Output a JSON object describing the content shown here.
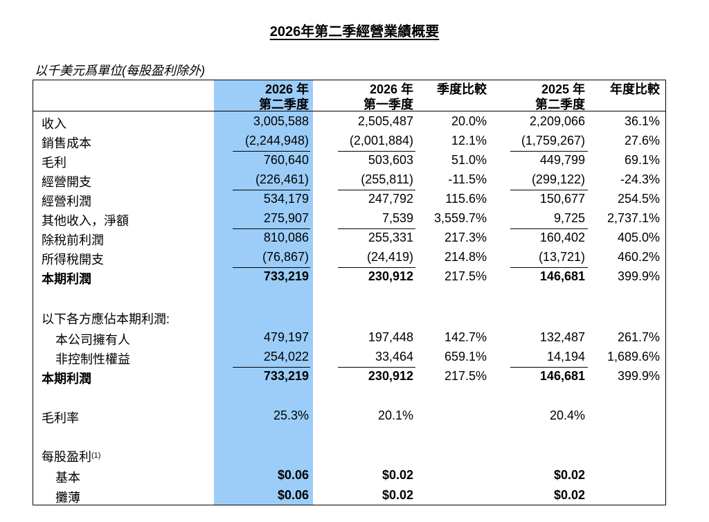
{
  "title": "2026年第二季經營業績概要",
  "unit_note": "以千美元爲單位(每股盈利除外)",
  "headers": {
    "col1_line1": "2026 年",
    "col1_line2": "第二季度",
    "col2_line1": "2026 年",
    "col2_line2": "第一季度",
    "col3": "季度比較",
    "col4_line1": "2025 年",
    "col4_line2": "第二季度",
    "col5": "年度比較"
  },
  "rows": [
    {
      "label": "收入",
      "v1": "3,005,588",
      "v2": "2,505,487",
      "v3": "20.0%",
      "v4": "2,209,066",
      "v5": "36.1%"
    },
    {
      "label": "銷售成本",
      "v1": "(2,244,948)",
      "v2": "(2,001,884)",
      "v3": "12.1%",
      "v4": "(1,759,267)",
      "v5": "27.6%"
    },
    {
      "label": "毛利",
      "v1": "760,640",
      "v2": "503,603",
      "v3": "51.0%",
      "v4": "449,799",
      "v5": "69.1%"
    },
    {
      "label": "經營開支",
      "v1": "(226,461)",
      "v2": "(255,811)",
      "v3": "-11.5%",
      "v4": "(299,122)",
      "v5": "-24.3%"
    },
    {
      "label": "經營利潤",
      "v1": "534,179",
      "v2": "247,792",
      "v3": "115.6%",
      "v4": "150,677",
      "v5": "254.5%"
    },
    {
      "label": "其他收入，淨額",
      "v1": "275,907",
      "v2": "7,539",
      "v3": "3,559.7%",
      "v4": "9,725",
      "v5": "2,737.1%"
    },
    {
      "label": "除稅前利潤",
      "v1": "810,086",
      "v2": "255,331",
      "v3": "217.3%",
      "v4": "160,402",
      "v5": "405.0%"
    },
    {
      "label": "所得稅開支",
      "v1": "(76,867)",
      "v2": "(24,419)",
      "v3": "214.8%",
      "v4": "(13,721)",
      "v5": "460.2%"
    },
    {
      "label": "本期利潤",
      "v1": "733,219",
      "v2": "230,912",
      "v3": "217.5%",
      "v4": "146,681",
      "v5": "399.9%"
    }
  ],
  "attrib_header": "以下各方應佔本期利潤:",
  "attrib_rows": [
    {
      "label": "本公司擁有人",
      "v1": "479,197",
      "v2": "197,448",
      "v3": "142.7%",
      "v4": "132,487",
      "v5": "261.7%"
    },
    {
      "label": "非控制性權益",
      "v1": "254,022",
      "v2": "33,464",
      "v3": "659.1%",
      "v4": "14,194",
      "v5": "1,689.6%"
    },
    {
      "label": "本期利潤",
      "v1": "733,219",
      "v2": "230,912",
      "v3": "217.5%",
      "v4": "146,681",
      "v5": "399.9%"
    }
  ],
  "gross_margin": {
    "label": "毛利率",
    "v1": "25.3%",
    "v2": "20.1%",
    "v4": "20.4%"
  },
  "eps": {
    "label": "每股盈利",
    "note": "(1)",
    "basic": {
      "label": "基本",
      "v1": "$0.06",
      "v2": "$0.02",
      "v4": "$0.02"
    },
    "diluted": {
      "label": "攤薄",
      "v1": "$0.06",
      "v2": "$0.02",
      "v4": "$0.02"
    }
  }
}
